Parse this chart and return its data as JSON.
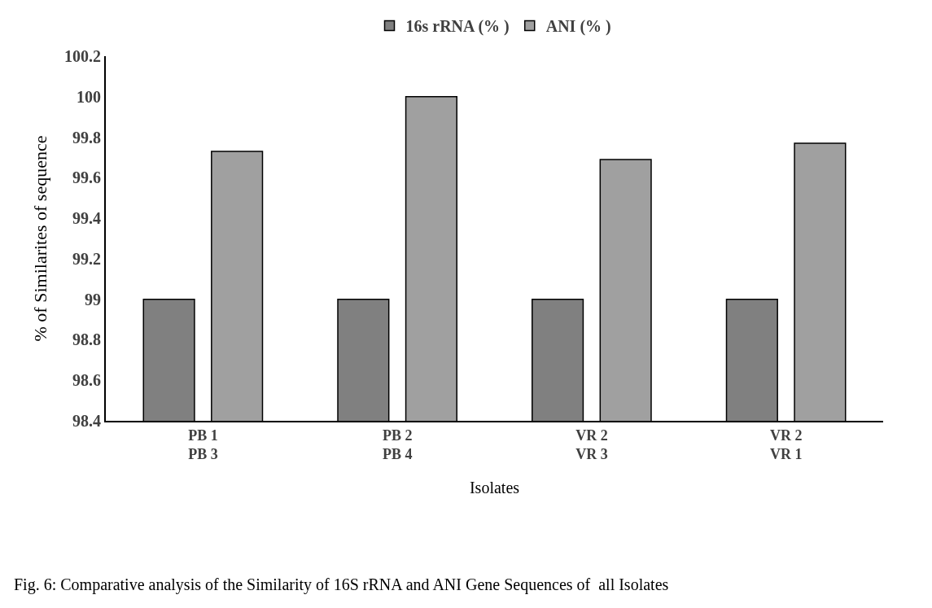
{
  "chart_data": {
    "type": "bar",
    "xlabel": "Isolates",
    "ylabel": "% of Similarites of sequence",
    "categories": [
      "PB 1\nPB 3",
      "PB 2\nPB 4",
      "VR 2\nVR 3",
      "VR 2\nVR 1"
    ],
    "series": [
      {
        "name": "16s rRNA (% )",
        "color": "#808080",
        "values": [
          99.0,
          99.0,
          99.0,
          99.0
        ]
      },
      {
        "name": "ANI (% )",
        "color": "#a0a0a0",
        "values": [
          99.73,
          100.0,
          99.69,
          99.77
        ]
      }
    ],
    "ylim": [
      98.4,
      100.2
    ],
    "yticks": [
      98.4,
      98.6,
      98.8,
      99,
      99.2,
      99.4,
      99.6,
      99.8,
      100,
      100.2
    ],
    "legend": "top",
    "annotations": [
      "Fig. 6: Comparative analysis of the Similarity of 16S rRNA and ANI Gene Sequences of  all Isolates"
    ]
  }
}
